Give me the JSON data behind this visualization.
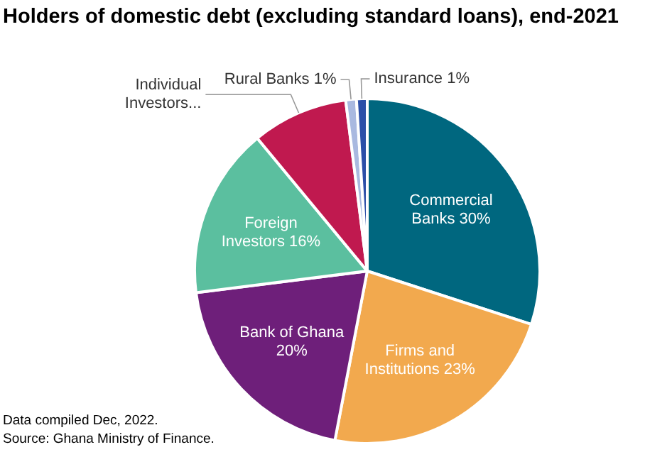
{
  "chart_data": {
    "type": "pie",
    "title": "Holders of domestic debt (excluding standard loans), end-2021",
    "categories": [
      "Commercial Banks",
      "Firms and Institutions",
      "Bank of Ghana",
      "Foreign Investors",
      "Individual Investors...",
      "Rural Banks",
      "Insurance"
    ],
    "values": [
      30,
      23,
      20,
      16,
      9,
      1,
      1
    ],
    "value_labels": [
      "30%",
      "23%",
      "20%",
      "16%",
      null,
      "1%",
      "1%"
    ],
    "colors": [
      "#00677f",
      "#f2a94e",
      "#6e1f7a",
      "#5bbf9f",
      "#c0194f",
      "#a9b9e0",
      "#2c4fa8"
    ],
    "legend": false,
    "annotations": [
      "Data compiled Dec, 2022.",
      "Source: Ghana Ministry of Finance."
    ]
  }
}
